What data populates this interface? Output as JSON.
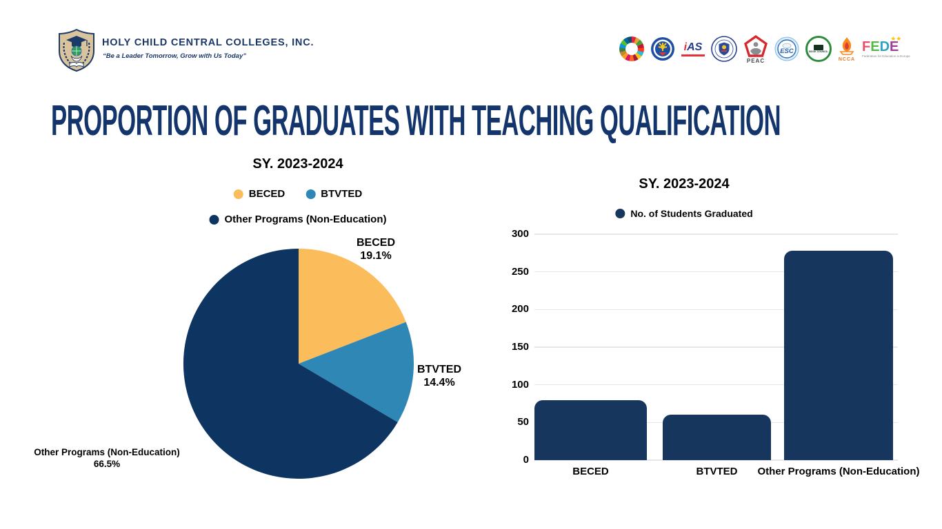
{
  "header": {
    "school_name": "HOLY CHILD CENTRAL COLLEGES, INC.",
    "tagline": "“Be a Leader Tomorrow, Grow with Us Today”",
    "partner_logos": {
      "ias_text": "iAS",
      "peac_label": "PEAC",
      "esc_label": "ESC",
      "book_council_label": "BOOK COUNCIL",
      "ncca_label": "NCCA",
      "fede_letters": [
        "F",
        "E",
        "D",
        "E"
      ],
      "fede_letter_colors": [
        "#E8506E",
        "#56B947",
        "#2BA3C4",
        "#9C3F97"
      ],
      "fede_stars": "★★",
      "fede_subtext": "Federation for Education in Europe"
    }
  },
  "page_title": "PROPORTION OF GRADUATES WITH TEACHING QUALIFICATION",
  "title_color": "#14356b",
  "chart_data": [
    {
      "type": "pie",
      "title": "SY. 2023-2024",
      "labels": [
        "BECED",
        "BTVTED",
        "Other Programs (Non-Education)"
      ],
      "values_percent": [
        19.1,
        14.4,
        66.5
      ],
      "pct_labels": [
        "19.1%",
        "14.4%",
        "66.5%"
      ],
      "colors": [
        "#FBBC5C",
        "#2F87B5",
        "#0E3462"
      ],
      "start_angle_deg": 0,
      "direction": "clockwise",
      "legend_position": "top"
    },
    {
      "type": "bar",
      "title": "SY. 2023-2024",
      "legend": "No. of Students Graduated",
      "categories": [
        "BECED",
        "BTVTED",
        "Other Programs (Non-Education)"
      ],
      "values": [
        80,
        60,
        278
      ],
      "ylim": [
        0,
        300
      ],
      "yticks": [
        0,
        50,
        100,
        150,
        200,
        250,
        300
      ],
      "bar_color": "#16365E",
      "grid": true,
      "legend_position": "top"
    }
  ]
}
